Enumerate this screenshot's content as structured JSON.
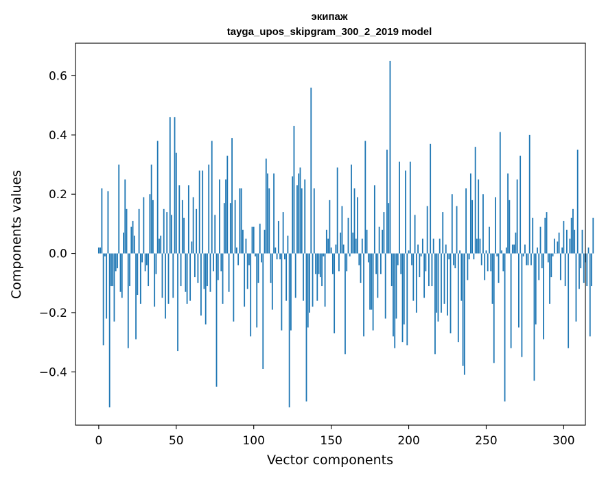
{
  "chart_data": {
    "type": "bar",
    "title": "экипаж",
    "subtitle": "tayga_upos_skipgram_300_2_2019 model",
    "xlabel": "Vector components",
    "ylabel": "Components values",
    "xlim": [
      -15,
      314
    ],
    "ylim": [
      -0.58,
      0.71
    ],
    "xticks": [
      0,
      50,
      100,
      150,
      200,
      250,
      300
    ],
    "xtick_labels": [
      "0",
      "50",
      "100",
      "150",
      "200",
      "250",
      "300"
    ],
    "yticks": [
      -0.4,
      -0.2,
      0.0,
      0.2,
      0.4,
      0.6
    ],
    "ytick_labels": [
      "−0.4",
      "−0.2",
      "0.0",
      "0.2",
      "0.4",
      "0.6"
    ],
    "grid": false,
    "bar_color": "#1f77b4",
    "x_start": 0,
    "values": [
      0.02,
      0.02,
      0.22,
      -0.31,
      -0.01,
      -0.22,
      0.21,
      -0.52,
      -0.11,
      -0.11,
      -0.23,
      -0.06,
      -0.05,
      0.3,
      -0.13,
      -0.15,
      0.07,
      0.25,
      0.15,
      -0.32,
      -0.11,
      0.09,
      0.11,
      0.06,
      -0.29,
      -0.14,
      0.15,
      -0.17,
      -0.03,
      0.19,
      -0.06,
      -0.04,
      -0.11,
      0.2,
      0.3,
      0.18,
      -0.18,
      -0.07,
      0.38,
      0.05,
      0.06,
      -0.15,
      0.15,
      -0.22,
      0.14,
      -0.17,
      0.46,
      0.13,
      -0.15,
      0.46,
      0.34,
      -0.33,
      0.23,
      -0.11,
      0.18,
      0.12,
      -0.13,
      -0.17,
      0.23,
      -0.16,
      0.04,
      0.19,
      -0.08,
      0.15,
      -0.1,
      0.28,
      -0.21,
      0.28,
      -0.12,
      -0.24,
      -0.11,
      0.3,
      -0.13,
      0.38,
      -0.06,
      0.13,
      -0.45,
      -0.09,
      0.25,
      -0.06,
      -0.17,
      0.17,
      0.25,
      0.33,
      -0.13,
      0.17,
      0.39,
      -0.23,
      0.18,
      0.02,
      -0.04,
      0.22,
      0.22,
      0.08,
      -0.18,
      0.05,
      -0.12,
      -0.04,
      -0.28,
      0.09,
      0.09,
      -0.01,
      -0.25,
      -0.1,
      0.1,
      -0.03,
      -0.39,
      0.08,
      0.32,
      0.27,
      0.22,
      -0.1,
      -0.19,
      0.27,
      0.02,
      -0.02,
      0.11,
      -0.02,
      -0.26,
      0.14,
      -0.02,
      -0.16,
      0.06,
      -0.52,
      -0.26,
      0.26,
      0.43,
      -0.15,
      0.23,
      0.27,
      0.29,
      0.22,
      -0.16,
      0.25,
      -0.5,
      -0.25,
      -0.2,
      0.56,
      -0.18,
      0.22,
      -0.07,
      -0.16,
      -0.07,
      -0.08,
      -0.11,
      -0.01,
      -0.18,
      0.08,
      0.05,
      0.18,
      0.02,
      -0.07,
      -0.27,
      0.03,
      0.29,
      -0.06,
      0.07,
      0.16,
      0.03,
      -0.34,
      -0.06,
      0.12,
      -0.01,
      0.3,
      0.07,
      0.22,
      0.05,
      0.19,
      -0.04,
      -0.1,
      0.05,
      -0.28,
      0.38,
      0.08,
      -0.03,
      -0.19,
      -0.19,
      -0.26,
      0.23,
      -0.07,
      -0.15,
      0.09,
      -0.07,
      0.08,
      0.14,
      -0.22,
      0.35,
      0.17,
      0.65,
      -0.11,
      -0.28,
      -0.32,
      -0.22,
      -0.04,
      0.31,
      -0.07,
      -0.3,
      -0.24,
      0.28,
      -0.31,
      0.01,
      0.31,
      -0.04,
      -0.16,
      0.13,
      -0.2,
      0.03,
      -0.08,
      -0.01,
      0.05,
      -0.15,
      -0.06,
      0.16,
      -0.11,
      0.37,
      -0.11,
      0.05,
      -0.34,
      -0.2,
      -0.23,
      0.05,
      -0.2,
      0.14,
      -0.17,
      0.03,
      -0.21,
      -0.02,
      -0.27,
      0.2,
      -0.04,
      -0.05,
      0.16,
      -0.3,
      0.01,
      -0.16,
      -0.38,
      -0.41,
      0.22,
      -0.09,
      -0.02,
      0.27,
      0.18,
      -0.02,
      0.36,
      0.05,
      0.25,
      0.05,
      -0.04,
      0.2,
      -0.09,
      0.01,
      -0.06,
      0.09,
      -0.06,
      -0.17,
      -0.37,
      0.19,
      -0.01,
      -0.1,
      0.41,
      0.01,
      -0.06,
      -0.5,
      0.02,
      0.27,
      0.18,
      -0.32,
      0.03,
      0.03,
      0.07,
      0.25,
      -0.25,
      0.33,
      -0.35,
      -0.01,
      0.03,
      -0.04,
      -0.04,
      0.4,
      -0.04,
      0.12,
      -0.43,
      -0.24,
      0.02,
      -0.09,
      0.09,
      -0.05,
      -0.29,
      0.12,
      0.14,
      -0.03,
      -0.17,
      -0.08,
      -0.01,
      0.05,
      0.0,
      0.04,
      0.07,
      -0.09,
      0.02,
      0.11,
      -0.11,
      0.08,
      -0.32,
      0.05,
      0.12,
      0.15,
      0.08,
      -0.23,
      0.35,
      -0.12,
      -0.05,
      0.08,
      -0.1,
      -0.03,
      -0.11,
      0.02,
      -0.28,
      -0.11,
      0.12
    ]
  }
}
